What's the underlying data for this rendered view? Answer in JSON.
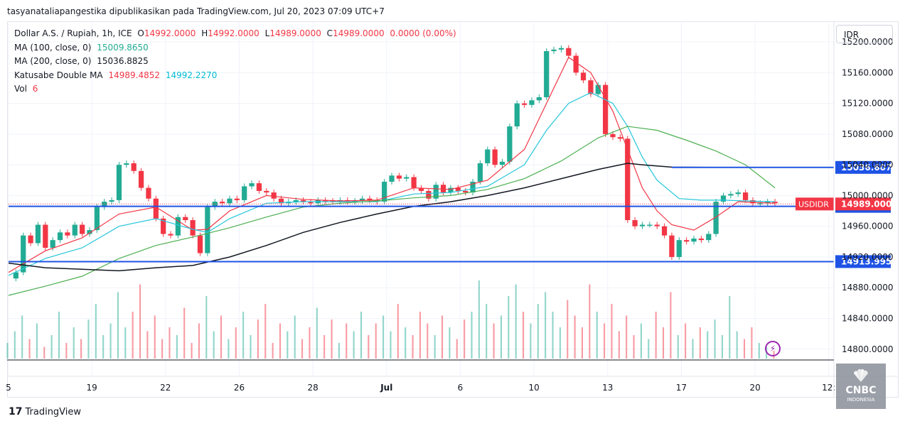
{
  "header": {
    "text": "tasyanataliapangestika dipublikasikan pada TradingView.com, Jul 20, 2023 07:09 UTC+7"
  },
  "legend": {
    "symbol": "Dollar A.S. / Rupiah, 1h, ICE",
    "open_label": "O",
    "open": "14992.0000",
    "high_label": "H",
    "high": "14992.0000",
    "low_label": "L",
    "low": "14989.0000",
    "close_label": "C",
    "close": "14989.0000",
    "change": "0.0000 (0.00%)",
    "ma100_label": "MA (100, close, 0)",
    "ma100": "15009.8650",
    "ma200_label": "MA (200, close, 0)",
    "ma200": "15036.8825",
    "katusabe_label": "Katusabe Double MA",
    "katusabe_1": "14989.4852",
    "katusabe_2": "14992.2270",
    "vol_label": "Vol",
    "vol": "6"
  },
  "currency_button": "IDR",
  "brand": {
    "logo": "17",
    "name": "TradingView"
  },
  "watermark": {
    "name": "CNBC",
    "sub": "INDONESIA"
  },
  "icons": {
    "bolt": "bolt-icon",
    "tv_logo": "tradingview-logo-icon",
    "cnbc_logo": "cnbc-peacock-icon"
  },
  "colors": {
    "up": "#22ab94",
    "down": "#f23645",
    "ma_red": "#f23645",
    "ma_cyan": "#26c6da",
    "ma_green": "#4caf50",
    "ma_black": "#131722",
    "hline": "#1e53e5",
    "price_label": "#f23645"
  },
  "chart_data": {
    "type": "candlestick",
    "title": "Dollar A.S. / Rupiah, 1h, ICE",
    "ylim": [
      14785,
      15225
    ],
    "y_ticks": [
      "15200.0000",
      "15160.0000",
      "15120.0000",
      "15080.0000",
      "15040.0000",
      "15000.0000",
      "14960.0000",
      "14920.0000",
      "14880.0000",
      "14840.0000",
      "14800.0000"
    ],
    "x_ticks": [
      {
        "label": "5",
        "x": 0
      },
      {
        "label": "19",
        "x": 11.3
      },
      {
        "label": "22",
        "x": 21.3
      },
      {
        "label": "26",
        "x": 31.3
      },
      {
        "label": "28",
        "x": 41.3
      },
      {
        "label": "Jul",
        "x": 51.3
      },
      {
        "label": "6",
        "x": 61.3
      },
      {
        "label": "10",
        "x": 71.3
      },
      {
        "label": "13",
        "x": 81.3
      },
      {
        "label": "17",
        "x": 91.3
      },
      {
        "label": "20",
        "x": 101.3
      },
      {
        "label": "12:",
        "x": 111.3
      }
    ],
    "x_max": 112,
    "horizontal_lines": [
      {
        "label": "15036.6071",
        "value": 15036.6071,
        "x_start": 0
      },
      {
        "label": "14985.9129",
        "value": 14985.9129,
        "x_start": 0
      },
      {
        "label": "14913.9959",
        "value": 14913.9959,
        "x_start": 0
      }
    ],
    "current_price": {
      "symbol": "USDIDR",
      "value": "14989.0000",
      "y": 14989
    },
    "price_points": [
      [
        0,
        14892
      ],
      [
        1,
        14900
      ],
      [
        2,
        14948
      ],
      [
        3,
        14938
      ],
      [
        4,
        14962
      ],
      [
        5,
        14932
      ],
      [
        6,
        14942
      ],
      [
        7,
        14952
      ],
      [
        8,
        14948
      ],
      [
        9,
        14962
      ],
      [
        10,
        14950
      ],
      [
        11,
        14955
      ],
      [
        12,
        14985
      ],
      [
        13,
        14992
      ],
      [
        14,
        14994
      ],
      [
        15,
        15040
      ],
      [
        16,
        15042
      ],
      [
        17,
        15032
      ],
      [
        18,
        15010
      ],
      [
        19,
        14996
      ],
      [
        20,
        14970
      ],
      [
        21,
        14950
      ],
      [
        22,
        14948
      ],
      [
        23,
        14972
      ],
      [
        24,
        14968
      ],
      [
        25,
        14948
      ],
      [
        26,
        14925
      ],
      [
        27,
        14985
      ],
      [
        28,
        14992
      ],
      [
        29,
        14990
      ],
      [
        30,
        14996
      ],
      [
        31,
        14994
      ],
      [
        32,
        15012
      ],
      [
        33,
        15016
      ],
      [
        34,
        15006
      ],
      [
        35,
        15004
      ],
      [
        36,
        14996
      ],
      [
        37,
        14990
      ],
      [
        38,
        14992
      ],
      [
        39,
        14994
      ],
      [
        40,
        14992
      ],
      [
        41,
        14990
      ],
      [
        42,
        14994
      ],
      [
        43,
        14993
      ],
      [
        44,
        14992
      ],
      [
        45,
        14994
      ],
      [
        46,
        14992
      ],
      [
        47,
        14993
      ],
      [
        48,
        14996
      ],
      [
        49,
        14994
      ],
      [
        50,
        14992
      ],
      [
        51,
        15018
      ],
      [
        52,
        15026
      ],
      [
        53,
        15022
      ],
      [
        54,
        15024
      ],
      [
        55,
        15010
      ],
      [
        56,
        15006
      ],
      [
        57,
        14996
      ],
      [
        58,
        15014
      ],
      [
        59,
        15004
      ],
      [
        60,
        15010
      ],
      [
        61,
        15006
      ],
      [
        62,
        15004
      ],
      [
        63,
        15018
      ],
      [
        64,
        15042
      ],
      [
        65,
        15060
      ],
      [
        66,
        15040
      ],
      [
        67,
        15044
      ],
      [
        68,
        15090
      ],
      [
        69,
        15120
      ],
      [
        70,
        15118
      ],
      [
        71,
        15124
      ],
      [
        72,
        15128
      ],
      [
        73,
        15188
      ],
      [
        74,
        15190
      ],
      [
        75,
        15192
      ],
      [
        76,
        15182
      ],
      [
        77,
        15160
      ],
      [
        78,
        15150
      ],
      [
        79,
        15132
      ],
      [
        80,
        15144
      ],
      [
        81,
        15080
      ],
      [
        82,
        15076
      ],
      [
        83,
        15074
      ],
      [
        84,
        14968
      ],
      [
        85,
        14960
      ],
      [
        86,
        14962
      ],
      [
        87,
        14962
      ],
      [
        88,
        14960
      ],
      [
        89,
        14948
      ],
      [
        90,
        14920
      ],
      [
        91,
        14942
      ],
      [
        92,
        14940
      ],
      [
        93,
        14944
      ],
      [
        94,
        14942
      ],
      [
        95,
        14950
      ],
      [
        96,
        14992
      ],
      [
        97,
        15000
      ],
      [
        98,
        15002
      ],
      [
        99,
        15004
      ],
      [
        100,
        14994
      ],
      [
        101,
        14990
      ],
      [
        102,
        14990
      ],
      [
        103,
        14992
      ],
      [
        104,
        14990
      ]
    ],
    "series": [
      {
        "name": "Katusabe Double MA 1",
        "color": "#f23645",
        "values": [
          [
            0,
            14900
          ],
          [
            5,
            14928
          ],
          [
            10,
            14945
          ],
          [
            15,
            14976
          ],
          [
            20,
            14985
          ],
          [
            25,
            14955
          ],
          [
            27,
            14956
          ],
          [
            30,
            14980
          ],
          [
            35,
            15000
          ],
          [
            40,
            14995
          ],
          [
            45,
            14993
          ],
          [
            50,
            14994
          ],
          [
            55,
            15010
          ],
          [
            60,
            15008
          ],
          [
            65,
            15020
          ],
          [
            70,
            15060
          ],
          [
            73,
            15120
          ],
          [
            76,
            15180
          ],
          [
            79,
            15160
          ],
          [
            82,
            15110
          ],
          [
            84,
            15060
          ],
          [
            86,
            15010
          ],
          [
            88,
            14980
          ],
          [
            90,
            14962
          ],
          [
            93,
            14955
          ],
          [
            96,
            14972
          ],
          [
            99,
            14992
          ],
          [
            104,
            14990
          ]
        ]
      },
      {
        "name": "Katusabe Double MA 2",
        "color": "#26c6da",
        "values": [
          [
            0,
            14896
          ],
          [
            5,
            14918
          ],
          [
            10,
            14932
          ],
          [
            15,
            14960
          ],
          [
            20,
            14970
          ],
          [
            25,
            14956
          ],
          [
            27,
            14952
          ],
          [
            30,
            14970
          ],
          [
            35,
            14990
          ],
          [
            40,
            14992
          ],
          [
            45,
            14992
          ],
          [
            50,
            14992
          ],
          [
            55,
            15002
          ],
          [
            60,
            15004
          ],
          [
            65,
            15012
          ],
          [
            70,
            15040
          ],
          [
            73,
            15085
          ],
          [
            76,
            15120
          ],
          [
            79,
            15134
          ],
          [
            82,
            15120
          ],
          [
            84,
            15090
          ],
          [
            86,
            15050
          ],
          [
            88,
            15020
          ],
          [
            91,
            14996
          ],
          [
            94,
            14994
          ],
          [
            97,
            14994
          ],
          [
            100,
            14993
          ],
          [
            104,
            14992
          ]
        ]
      },
      {
        "name": "MA (100, close, 0)",
        "color": "#4caf50",
        "values": [
          [
            0,
            14870
          ],
          [
            5,
            14882
          ],
          [
            10,
            14895
          ],
          [
            15,
            14918
          ],
          [
            20,
            14935
          ],
          [
            25,
            14946
          ],
          [
            30,
            14958
          ],
          [
            35,
            14972
          ],
          [
            40,
            14985
          ],
          [
            45,
            14990
          ],
          [
            50,
            14993
          ],
          [
            55,
            14997
          ],
          [
            60,
            15000
          ],
          [
            65,
            15008
          ],
          [
            70,
            15022
          ],
          [
            75,
            15045
          ],
          [
            80,
            15075
          ],
          [
            84,
            15090
          ],
          [
            88,
            15085
          ],
          [
            92,
            15072
          ],
          [
            96,
            15058
          ],
          [
            100,
            15040
          ],
          [
            104,
            15010
          ]
        ]
      },
      {
        "name": "MA (200, close, 0)",
        "color": "#131722",
        "values": [
          [
            0,
            14912
          ],
          [
            5,
            14906
          ],
          [
            10,
            14904
          ],
          [
            15,
            14902
          ],
          [
            20,
            14906
          ],
          [
            25,
            14909
          ],
          [
            30,
            14920
          ],
          [
            35,
            14935
          ],
          [
            40,
            14952
          ],
          [
            45,
            14965
          ],
          [
            50,
            14976
          ],
          [
            55,
            14986
          ],
          [
            60,
            14992
          ],
          [
            65,
            15000
          ],
          [
            70,
            15010
          ],
          [
            75,
            15022
          ],
          [
            80,
            15034
          ],
          [
            84,
            15042
          ],
          [
            86,
            15040
          ],
          [
            90,
            15037
          ],
          [
            95,
            15036.6
          ],
          [
            104,
            15036.6
          ]
        ]
      }
    ],
    "volume_max": 100,
    "volume": [
      [
        0,
        20
      ],
      [
        1,
        35
      ],
      [
        2,
        55
      ],
      [
        3,
        25
      ],
      [
        4,
        45
      ],
      [
        5,
        15
      ],
      [
        6,
        30
      ],
      [
        7,
        60
      ],
      [
        8,
        20
      ],
      [
        9,
        40
      ],
      [
        10,
        25
      ],
      [
        11,
        50
      ],
      [
        12,
        70
      ],
      [
        13,
        30
      ],
      [
        14,
        45
      ],
      [
        15,
        85
      ],
      [
        16,
        40
      ],
      [
        17,
        60
      ],
      [
        18,
        95
      ],
      [
        19,
        35
      ],
      [
        20,
        55
      ],
      [
        21,
        25
      ],
      [
        22,
        40
      ],
      [
        23,
        30
      ],
      [
        24,
        65
      ],
      [
        25,
        20
      ],
      [
        26,
        45
      ],
      [
        27,
        80
      ],
      [
        28,
        35
      ],
      [
        29,
        55
      ],
      [
        30,
        25
      ],
      [
        31,
        40
      ],
      [
        32,
        60
      ],
      [
        33,
        30
      ],
      [
        34,
        50
      ],
      [
        35,
        70
      ],
      [
        36,
        20
      ],
      [
        37,
        45
      ],
      [
        38,
        35
      ],
      [
        39,
        55
      ],
      [
        40,
        25
      ],
      [
        41,
        40
      ],
      [
        42,
        65
      ],
      [
        43,
        30
      ],
      [
        44,
        50
      ],
      [
        45,
        20
      ],
      [
        46,
        45
      ],
      [
        47,
        35
      ],
      [
        48,
        60
      ],
      [
        49,
        30
      ],
      [
        50,
        45
      ],
      [
        51,
        55
      ],
      [
        52,
        35
      ],
      [
        53,
        70
      ],
      [
        54,
        40
      ],
      [
        55,
        30
      ],
      [
        56,
        60
      ],
      [
        57,
        45
      ],
      [
        58,
        30
      ],
      [
        59,
        55
      ],
      [
        60,
        40
      ],
      [
        61,
        25
      ],
      [
        62,
        50
      ],
      [
        63,
        60
      ],
      [
        64,
        100
      ],
      [
        65,
        70
      ],
      [
        66,
        45
      ],
      [
        67,
        55
      ],
      [
        68,
        80
      ],
      [
        69,
        95
      ],
      [
        70,
        60
      ],
      [
        71,
        45
      ],
      [
        72,
        70
      ],
      [
        73,
        85
      ],
      [
        74,
        60
      ],
      [
        75,
        40
      ],
      [
        76,
        75
      ],
      [
        77,
        55
      ],
      [
        78,
        40
      ],
      [
        79,
        95
      ],
      [
        80,
        60
      ],
      [
        81,
        45
      ],
      [
        82,
        70
      ],
      [
        83,
        35
      ],
      [
        84,
        55
      ],
      [
        85,
        30
      ],
      [
        86,
        45
      ],
      [
        87,
        25
      ],
      [
        88,
        60
      ],
      [
        89,
        40
      ],
      [
        90,
        85
      ],
      [
        91,
        30
      ],
      [
        92,
        45
      ],
      [
        93,
        25
      ],
      [
        94,
        40
      ],
      [
        95,
        35
      ],
      [
        96,
        50
      ],
      [
        97,
        30
      ],
      [
        98,
        80
      ],
      [
        99,
        35
      ],
      [
        100,
        25
      ],
      [
        101,
        40
      ],
      [
        102,
        20
      ],
      [
        103,
        15
      ],
      [
        104,
        10
      ]
    ]
  }
}
